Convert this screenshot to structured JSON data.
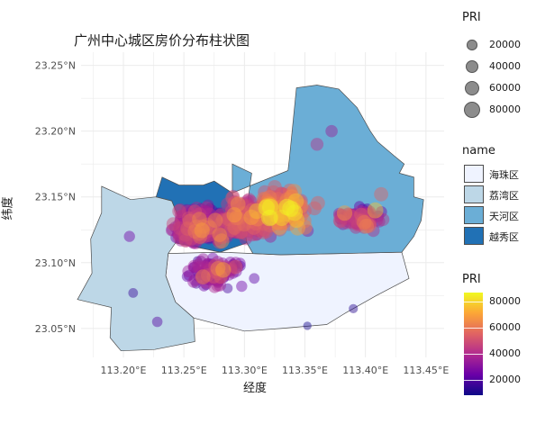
{
  "chart_data": {
    "type": "map-scatter",
    "title": "广州中心城区房价分布柱状图",
    "xlabel": "经度",
    "ylabel": "纬度",
    "x_ticks": [
      "113.20°E",
      "113.25°E",
      "113.30°E",
      "113.35°E",
      "113.40°E",
      "113.45°E"
    ],
    "y_ticks": [
      "23.05°N",
      "23.10°N",
      "23.15°N",
      "23.20°N",
      "23.25°N"
    ],
    "x_tick_values": [
      113.2,
      113.25,
      113.3,
      113.35,
      113.4,
      113.45
    ],
    "y_tick_values": [
      23.05,
      23.1,
      23.15,
      23.2,
      23.25
    ],
    "xlim": [
      113.165,
      113.465
    ],
    "ylim": [
      23.028,
      23.26
    ],
    "grid": true,
    "size_legend": {
      "title": "PRI",
      "breaks": [
        20000,
        40000,
        60000,
        80000
      ],
      "labels": [
        "20000",
        "40000",
        "60000",
        "80000"
      ],
      "color": "#8c8c8c"
    },
    "fill_legend": {
      "title": "name",
      "entries": [
        {
          "name": "海珠区",
          "color": "#eff3ff"
        },
        {
          "name": "荔湾区",
          "color": "#bdd7e7"
        },
        {
          "name": "天河区",
          "color": "#6baed6"
        },
        {
          "name": "越秀区",
          "color": "#2171b5"
        }
      ]
    },
    "color_legend": {
      "title": "PRI",
      "min": 8000,
      "max": 87000,
      "breaks": [
        20000,
        40000,
        60000,
        80000
      ],
      "labels": [
        "20000",
        "40000",
        "60000",
        "80000"
      ],
      "palette": [
        "#0d0887",
        "#6a00a8",
        "#b12a90",
        "#e16462",
        "#fca636",
        "#f0f921"
      ]
    },
    "regions": [
      {
        "name": "海珠区",
        "lonlat": [
          [
            113.237,
            23.107
          ],
          [
            113.28,
            23.108
          ],
          [
            113.33,
            23.106
          ],
          [
            113.38,
            23.107
          ],
          [
            113.43,
            23.108
          ],
          [
            113.436,
            23.088
          ],
          [
            113.409,
            23.075
          ],
          [
            113.384,
            23.062
          ],
          [
            113.368,
            23.053
          ],
          [
            113.33,
            23.05
          ],
          [
            113.3,
            23.048
          ],
          [
            113.258,
            23.058
          ],
          [
            113.243,
            23.07
          ],
          [
            113.235,
            23.09
          ]
        ]
      },
      {
        "name": "荔湾区",
        "lonlat": [
          [
            113.182,
            23.158
          ],
          [
            113.206,
            23.148
          ],
          [
            113.227,
            23.15
          ],
          [
            113.24,
            23.147
          ],
          [
            113.247,
            23.131
          ],
          [
            113.243,
            23.115
          ],
          [
            113.237,
            23.107
          ],
          [
            113.235,
            23.09
          ],
          [
            113.243,
            23.07
          ],
          [
            113.258,
            23.058
          ],
          [
            113.259,
            23.04
          ],
          [
            113.226,
            23.034
          ],
          [
            113.198,
            23.033
          ],
          [
            113.189,
            23.043
          ],
          [
            113.19,
            23.066
          ],
          [
            113.162,
            23.072
          ],
          [
            113.174,
            23.092
          ],
          [
            113.173,
            23.118
          ],
          [
            113.182,
            23.138
          ]
        ]
      },
      {
        "name": "天河区",
        "lonlat": [
          [
            113.3,
            23.128
          ],
          [
            113.306,
            23.168
          ],
          [
            113.29,
            23.175
          ],
          [
            113.29,
            23.153
          ],
          [
            113.336,
            23.17
          ],
          [
            113.337,
            23.178
          ],
          [
            113.343,
            23.233
          ],
          [
            113.36,
            23.235
          ],
          [
            113.378,
            23.232
          ],
          [
            113.393,
            23.218
          ],
          [
            113.404,
            23.2
          ],
          [
            113.41,
            23.192
          ],
          [
            113.424,
            23.181
          ],
          [
            113.432,
            23.175
          ],
          [
            113.428,
            23.168
          ],
          [
            113.44,
            23.165
          ],
          [
            113.44,
            23.15
          ],
          [
            113.448,
            23.148
          ],
          [
            113.446,
            23.132
          ],
          [
            113.44,
            23.12
          ],
          [
            113.43,
            23.108
          ],
          [
            113.38,
            23.107
          ],
          [
            113.33,
            23.106
          ],
          [
            113.307,
            23.107
          ],
          [
            113.302,
            23.115
          ]
        ]
      },
      {
        "name": "越秀区",
        "lonlat": [
          [
            113.232,
            23.165
          ],
          [
            113.246,
            23.159
          ],
          [
            113.266,
            23.159
          ],
          [
            113.275,
            23.162
          ],
          [
            113.29,
            23.153
          ],
          [
            113.3,
            23.128
          ],
          [
            113.302,
            23.115
          ],
          [
            113.28,
            23.108
          ],
          [
            113.243,
            23.115
          ],
          [
            113.247,
            23.131
          ],
          [
            113.24,
            23.147
          ],
          [
            113.227,
            23.15
          ]
        ]
      }
    ],
    "points_generation": "seeded",
    "n_points": 900
  }
}
